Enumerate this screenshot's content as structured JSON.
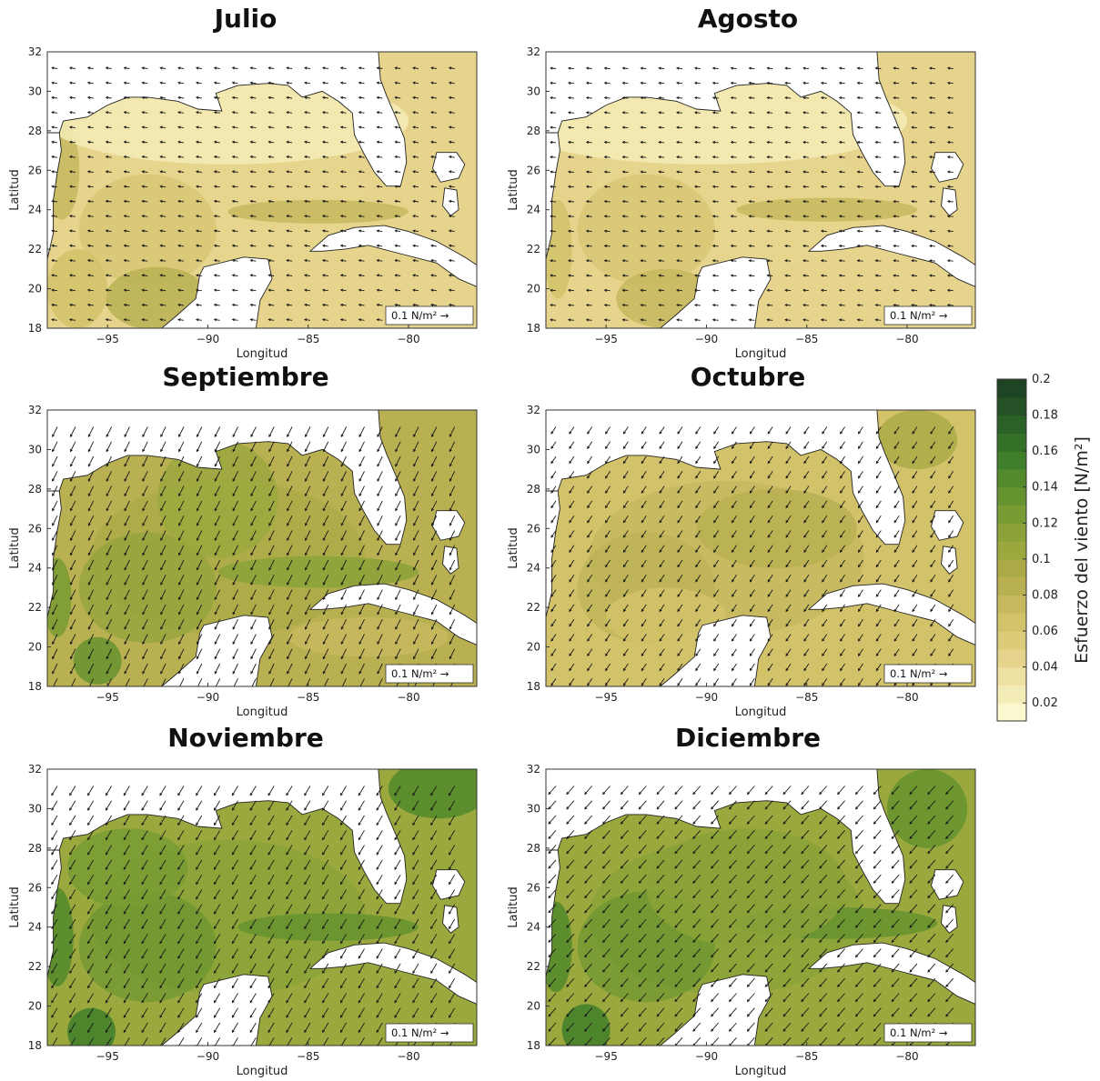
{
  "legend": {
    "scale_label": "0.1 N/m²",
    "arrow_glyph": "→"
  },
  "axes": {
    "xlabel": "Longitud",
    "ylabel": "Latitud",
    "xticks": [
      -95,
      -90,
      -85,
      -80
    ],
    "yticks": [
      18,
      20,
      22,
      24,
      26,
      28,
      30,
      32
    ],
    "xticks_text": [
      "−95",
      "−90",
      "−85",
      "−80"
    ]
  },
  "colorbar": {
    "label": "Esfuerzo del viento [N/m²]",
    "min": 0.01,
    "max": 0.2,
    "ticks": [
      0.02,
      0.04,
      0.06,
      0.08,
      0.1,
      0.12,
      0.14,
      0.16,
      0.18,
      0.2
    ],
    "tick_labels": [
      "0.02",
      "0.04",
      "0.06",
      "0.08",
      "0.1",
      "0.12",
      "0.14",
      "0.16",
      "0.18",
      "0.2"
    ],
    "colors": [
      "#fbf7cf",
      "#f4ecb6",
      "#ede0a0",
      "#e6d48c",
      "#dccb78",
      "#d2c26a",
      "#c6b85e",
      "#b9b052",
      "#abaa47",
      "#9ba83e",
      "#8aa237",
      "#789c33",
      "#65932f",
      "#528a2c",
      "#3f7f2a",
      "#347028",
      "#2b6127",
      "#255226",
      "#1f4423"
    ]
  },
  "panels": [
    {
      "id": "julio",
      "title": "Julio",
      "stress": "weak",
      "dir": [
        -1,
        0.15
      ]
    },
    {
      "id": "agosto",
      "title": "Agosto",
      "stress": "weak",
      "dir": [
        -1,
        0.1
      ]
    },
    {
      "id": "septiembre",
      "title": "Septiembre",
      "stress": "moderate",
      "dir": [
        -0.5,
        -1
      ]
    },
    {
      "id": "octubre",
      "title": "Octubre",
      "stress": "light",
      "dir": [
        -0.6,
        -0.9
      ]
    },
    {
      "id": "noviembre",
      "title": "Noviembre",
      "stress": "strong",
      "dir": [
        -0.6,
        -1
      ]
    },
    {
      "id": "diciembre",
      "title": "Diciembre",
      "stress": "strong",
      "dir": [
        -0.7,
        -0.8
      ]
    }
  ],
  "colors": {
    "ocean_weak": "#efe6b5",
    "land": "#ffffff",
    "coast": "#222222"
  }
}
